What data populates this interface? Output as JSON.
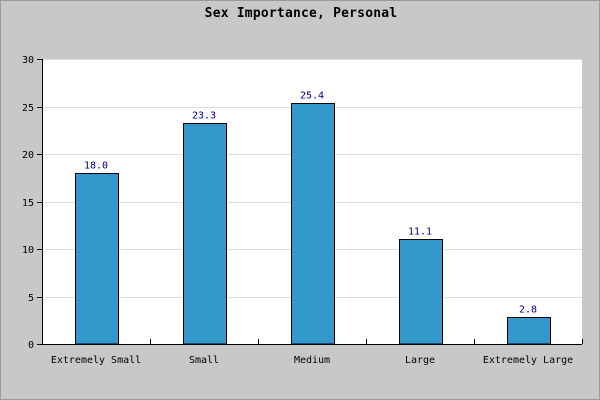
{
  "colors": {
    "background": "#c8c8c8",
    "plot_background": "#ffffff",
    "bar_fill": "#3399cc",
    "bar_stroke": "#000000",
    "grid": "#dddddd",
    "value_label": "#000080"
  },
  "chart_data": {
    "type": "bar",
    "title": "Sex Importance, Personal",
    "xlabel": "",
    "ylabel": "",
    "categories": [
      "Extremely Small",
      "Small",
      "Medium",
      "Large",
      "Extremely Large"
    ],
    "values": [
      18.0,
      23.3,
      25.4,
      11.1,
      2.8
    ],
    "value_labels": [
      "18.0",
      "23.3",
      "25.4",
      "11.1",
      "2.8"
    ],
    "ylim": [
      0,
      30
    ],
    "yticks": [
      0,
      5,
      10,
      15,
      20,
      25,
      30
    ],
    "ytick_labels": [
      "0",
      "5",
      "10",
      "15",
      "20",
      "25",
      "30"
    ],
    "grid": true,
    "legend": "none"
  }
}
